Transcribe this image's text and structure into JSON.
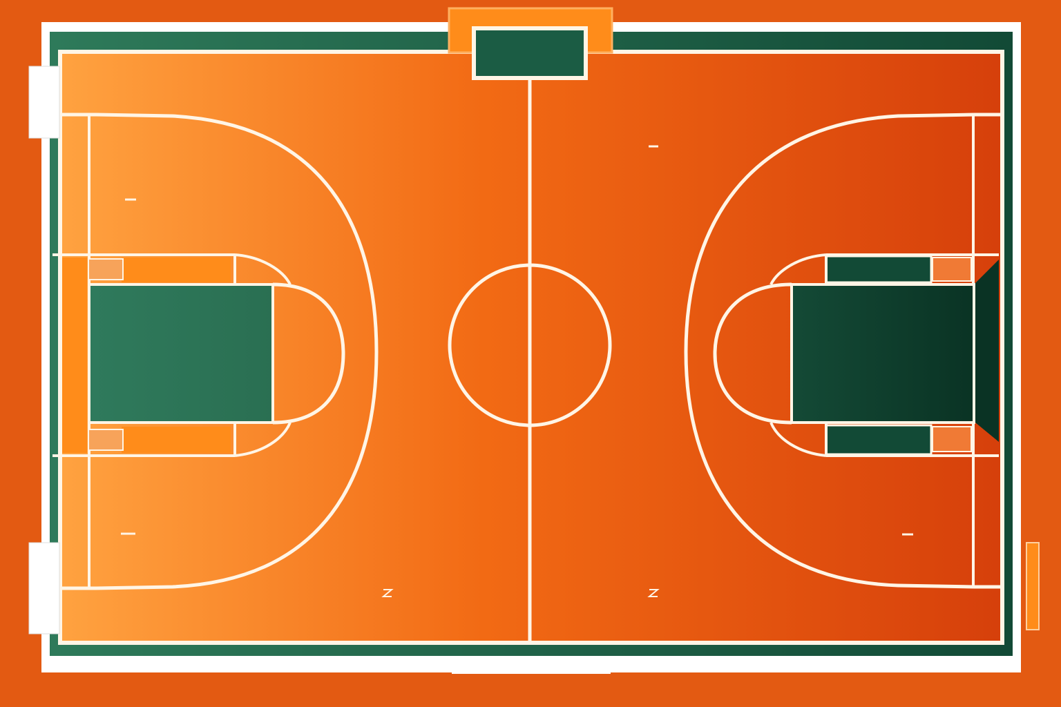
{
  "colors": {
    "background": "#e35a12",
    "court_light": "#ffa240",
    "court_mid": "#f26a14",
    "court_dark": "#d6400b",
    "border_green_left": "#2e7a5a",
    "border_green_right": "#124a36",
    "paint_left": "#2f7a5c",
    "paint_right": "#0f3d2c",
    "paint_right_edge": "#0a3324",
    "lines": "#fff5e6",
    "frame": "#ffffff",
    "accent_orange": "#ff8c1a"
  },
  "court": {
    "orientation": "top-down",
    "sides": [
      "left",
      "right"
    ],
    "features": [
      "center-line",
      "center-circle",
      "three-point-arc",
      "paint",
      "free-throw-circle",
      "backboard-marker"
    ]
  }
}
